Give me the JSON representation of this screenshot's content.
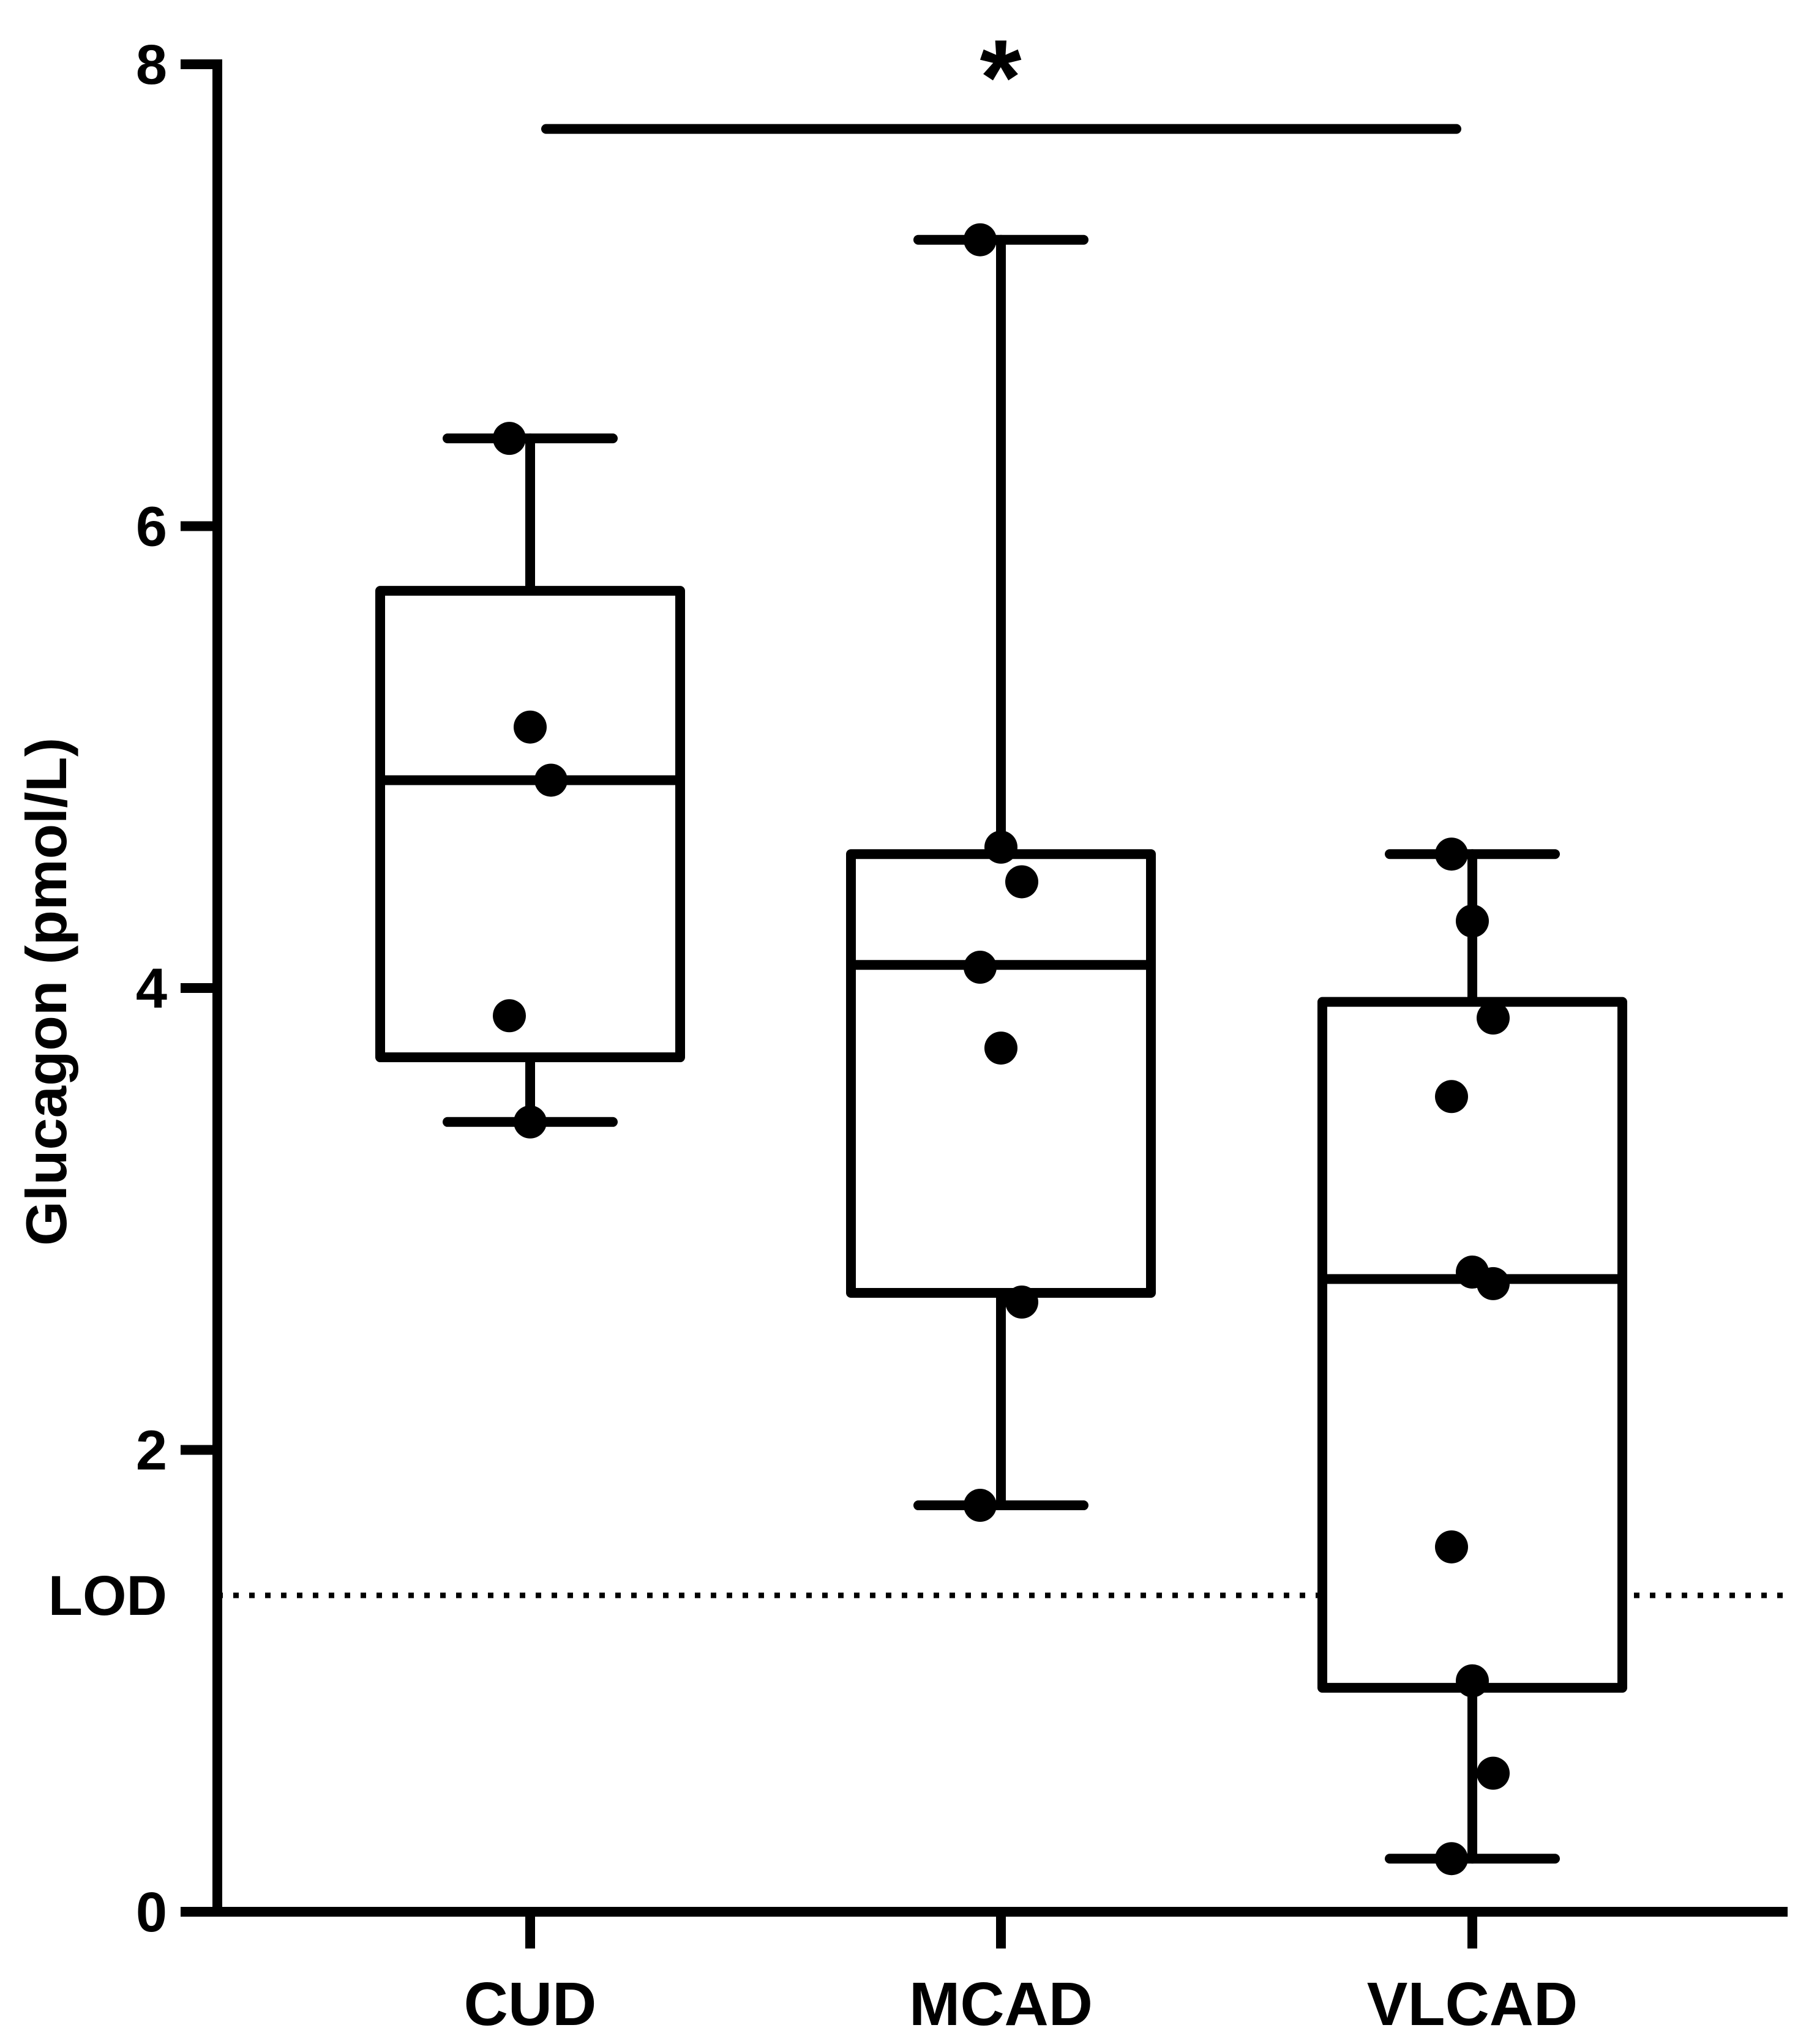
{
  "chart_data": {
    "type": "box",
    "title": "",
    "xlabel": "",
    "ylabel": "Glucagon (pmol/L)",
    "ylim": [
      0,
      8
    ],
    "yticks": [
      0,
      2,
      4,
      6,
      8
    ],
    "grid": false,
    "categories": [
      "CUD",
      "MCAD",
      "VLCAD"
    ],
    "boxes": [
      {
        "name": "CUD",
        "whisker_low": 3.42,
        "q1": 3.7,
        "median": 4.9,
        "q3": 5.72,
        "whisker_high": 6.38,
        "points": [
          6.38,
          5.13,
          4.9,
          3.88,
          3.42
        ]
      },
      {
        "name": "MCAD",
        "whisker_low": 1.76,
        "q1": 2.68,
        "median": 4.1,
        "q3": 4.58,
        "whisker_high": 7.24,
        "points": [
          7.24,
          4.61,
          4.46,
          4.09,
          3.74,
          2.64,
          1.76
        ]
      },
      {
        "name": "VLCAD",
        "whisker_low": 0.23,
        "q1": 0.97,
        "median": 2.74,
        "q3": 3.94,
        "whisker_high": 4.58,
        "points": [
          4.58,
          4.29,
          3.87,
          3.53,
          2.77,
          2.72,
          1.58,
          1.0,
          0.6,
          0.23
        ]
      }
    ],
    "reference_line": {
      "label": "LOD",
      "value": 1.37,
      "style": "dotted"
    },
    "significance": {
      "label": "*",
      "from": "CUD",
      "to": "VLCAD",
      "value": 7.72
    },
    "colors": {
      "stroke": "#000000",
      "background": "#ffffff"
    }
  }
}
